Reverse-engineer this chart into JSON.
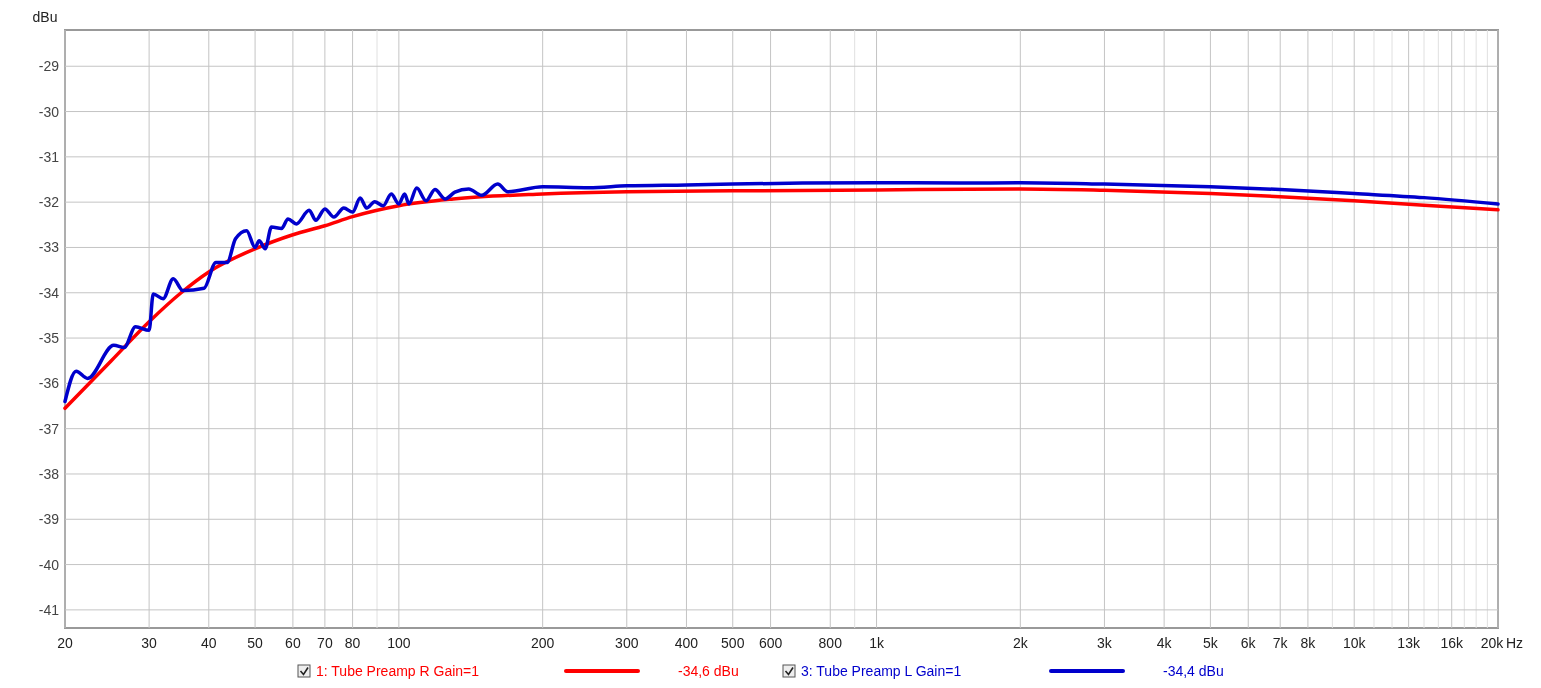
{
  "chart_data": {
    "type": "line",
    "ylabel": "dBu",
    "log": "x",
    "grid": true,
    "legend": "bottom",
    "line_style": "solid",
    "xlabel": "Hz",
    "xlim": [
      20,
      20000
    ],
    "ylim": [
      -41.4,
      -28.2
    ],
    "xticks": [
      20,
      30,
      40,
      50,
      60,
      70,
      80,
      {
        "value": 90,
        "label": null
      },
      100,
      200,
      300,
      400,
      500,
      600,
      800,
      {
        "value": 900,
        "label": null
      },
      {
        "value": 1000,
        "label": "1k"
      },
      {
        "value": 2000,
        "label": "2k"
      },
      {
        "value": 3000,
        "label": "3k"
      },
      {
        "value": 4000,
        "label": "4k"
      },
      {
        "value": 5000,
        "label": "5k"
      },
      {
        "value": 6000,
        "label": "6k"
      },
      {
        "value": 7000,
        "label": "7k"
      },
      {
        "value": 8000,
        "label": "8k"
      },
      {
        "value": 9000,
        "label": null
      },
      {
        "value": 10000,
        "label": "10k"
      },
      {
        "value": 11000,
        "label": null
      },
      {
        "value": 12000,
        "label": null
      },
      {
        "value": 13000,
        "label": "13k"
      },
      {
        "value": 14000,
        "label": null
      },
      {
        "value": 15000,
        "label": null
      },
      {
        "value": 16000,
        "label": "16k"
      },
      {
        "value": 17000,
        "label": null
      },
      {
        "value": 18000,
        "label": null
      },
      {
        "value": 19000,
        "label": null
      },
      {
        "value": 20000,
        "label": "20k"
      }
    ],
    "yticks": [
      -41,
      -40,
      -39,
      -38,
      -37,
      -36,
      -35,
      -34,
      -33,
      -32,
      -31,
      -30,
      -29
    ],
    "annotations": [
      "-34,6 dBu",
      "-34,4 dBu"
    ],
    "series": [
      {
        "name": "1: Tube Preamp R Gain=1",
        "color": "#ff0000",
        "x": [
          20,
          25,
          30,
          35,
          40,
          50,
          60,
          70,
          80,
          100,
          130,
          200,
          300,
          500,
          1000,
          2000,
          3000,
          5000,
          7000,
          10000,
          14000,
          20000
        ],
        "values": [
          -36.55,
          -35.5,
          -34.64,
          -34.0,
          -33.54,
          -33.03,
          -32.72,
          -32.52,
          -32.32,
          -32.08,
          -31.93,
          -31.82,
          -31.77,
          -31.75,
          -31.73,
          -31.71,
          -31.74,
          -31.81,
          -31.88,
          -31.97,
          -32.07,
          -32.17
        ]
      },
      {
        "name": "3: Tube Preamp L Gain=1",
        "color": "#0000cc",
        "x": [
          20,
          21.1,
          22.3,
          25.3,
          26.6,
          28.1,
          30,
          30.6,
          32.1,
          33.7,
          35.3,
          39.1,
          41.4,
          43.7,
          45.5,
          48,
          50,
          51,
          52.5,
          54.1,
          56.8,
          58.6,
          61,
          64.9,
          67,
          70,
          73.1,
          76.7,
          80,
          83,
          85.6,
          89,
          92.7,
          96.4,
          100,
          102.8,
          105,
          109,
          114,
          119,
          125,
          131,
          140,
          149,
          161,
          169,
          200,
          250,
          300,
          400,
          500,
          700,
          1000,
          1500,
          2000,
          3000,
          5000,
          7000,
          10000,
          14000,
          20000
        ],
        "values": [
          -36.4,
          -35.73,
          -35.89,
          -35.16,
          -35.21,
          -34.75,
          -34.83,
          -34.03,
          -34.13,
          -33.69,
          -33.95,
          -33.9,
          -33.33,
          -33.33,
          -32.81,
          -32.63,
          -33.0,
          -32.85,
          -33.03,
          -32.55,
          -32.58,
          -32.37,
          -32.48,
          -32.18,
          -32.4,
          -32.15,
          -32.33,
          -32.13,
          -32.22,
          -31.91,
          -32.13,
          -31.99,
          -32.08,
          -31.82,
          -32.04,
          -31.82,
          -32.04,
          -31.69,
          -31.97,
          -31.72,
          -31.93,
          -31.78,
          -31.71,
          -31.85,
          -31.6,
          -31.77,
          -31.66,
          -31.68,
          -31.64,
          -31.62,
          -31.6,
          -31.58,
          -31.57,
          -31.58,
          -31.57,
          -31.6,
          -31.66,
          -31.72,
          -31.81,
          -31.9,
          -32.04
        ]
      }
    ]
  }
}
